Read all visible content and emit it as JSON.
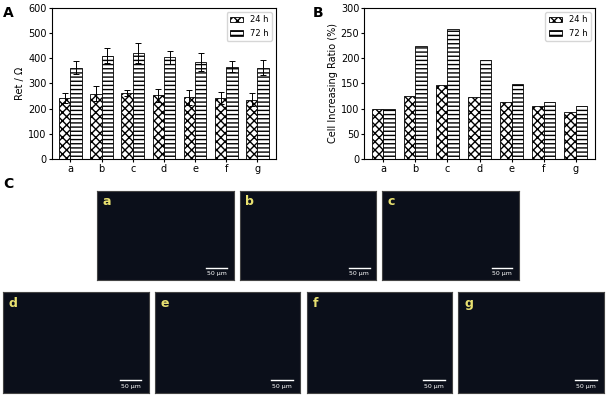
{
  "chart_data": [
    {
      "type": "bar",
      "panel": "A",
      "y_label": "Ret / Ω",
      "categories": [
        "a",
        "b",
        "c",
        "d",
        "e",
        "f",
        "g"
      ],
      "series": [
        {
          "name": "24 h",
          "color": "#ffffff",
          "values": [
            240,
            258,
            262,
            252,
            245,
            242,
            235
          ],
          "errors": [
            20,
            30,
            12,
            25,
            30,
            25,
            25
          ]
        },
        {
          "name": "72 h",
          "color": "#ffffff",
          "values": [
            362,
            410,
            420,
            403,
            385,
            367,
            363
          ],
          "errors": [
            25,
            30,
            40,
            25,
            35,
            20,
            30
          ]
        }
      ],
      "ylim": [
        0,
        600
      ],
      "yticks": [
        0,
        100,
        200,
        300,
        400,
        500,
        600
      ],
      "legend": "upper right"
    },
    {
      "type": "bar",
      "panel": "B",
      "y_label": "Cell Increasing Ratio (%)",
      "categories": [
        "a",
        "b",
        "c",
        "d",
        "e",
        "f",
        "g"
      ],
      "series": [
        {
          "name": "24 h",
          "color": "#ffffff",
          "values": [
            100,
            125,
            147,
            122,
            112,
            105,
            93
          ]
        },
        {
          "name": "72 h",
          "color": "#ffffff",
          "values": [
            100,
            224,
            259,
            196,
            148,
            113,
            105
          ]
        }
      ],
      "ylim": [
        0,
        300
      ],
      "yticks": [
        0,
        50,
        100,
        150,
        200,
        250,
        300
      ],
      "legend": "upper right"
    }
  ],
  "image_panel": {
    "panel": "C",
    "images": [
      "a",
      "b",
      "c",
      "d",
      "e",
      "f",
      "g"
    ],
    "scale_bar": "50 μm"
  }
}
